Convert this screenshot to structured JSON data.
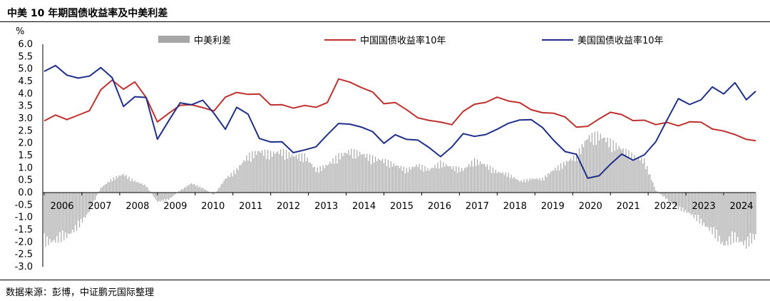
{
  "title": "中美 10 年期国债收益率及中美利差",
  "source": "数据来源：彭博，中证鹏元国际整理",
  "chart_data": {
    "type": "line",
    "unit": "%",
    "ylim": [
      -3.0,
      6.0
    ],
    "yticks": [
      "6.0",
      "5.5",
      "5.0",
      "4.5",
      "4.0",
      "3.5",
      "3.0",
      "2.5",
      "2.0",
      "1.5",
      "1.0",
      "0.5",
      "0.0",
      "-0.5",
      "-1.0",
      "-1.5",
      "-2.0",
      "-2.5",
      "-3.0"
    ],
    "years": [
      "2006",
      "2007",
      "2008",
      "2009",
      "2010",
      "2011",
      "2012",
      "2013",
      "2014",
      "2015",
      "2016",
      "2017",
      "2018",
      "2019",
      "2020",
      "2021",
      "2022",
      "2023",
      "2024"
    ],
    "x_range": [
      2006.0,
      2024.85
    ],
    "legend_placement": "top",
    "series": [
      {
        "name": "中美利差",
        "style": "bar",
        "color": "#a6a6a6",
        "x": [
          2006.0,
          2006.3,
          2006.6,
          2006.9,
          2007.2,
          2007.5,
          2007.8,
          2008.1,
          2008.4,
          2008.7,
          2009.0,
          2009.3,
          2009.6,
          2009.9,
          2010.2,
          2010.5,
          2010.8,
          2011.1,
          2011.4,
          2011.7,
          2012.0,
          2012.3,
          2012.6,
          2012.9,
          2013.2,
          2013.5,
          2013.8,
          2014.1,
          2014.4,
          2014.7,
          2015.0,
          2015.3,
          2015.6,
          2015.9,
          2016.2,
          2016.5,
          2016.8,
          2017.1,
          2017.4,
          2017.7,
          2018.0,
          2018.3,
          2018.6,
          2018.9,
          2019.2,
          2019.5,
          2019.8,
          2020.1,
          2020.4,
          2020.7,
          2021.0,
          2021.3,
          2021.6,
          2021.9,
          2022.2,
          2022.5,
          2022.8,
          2023.1,
          2023.4,
          2023.7,
          2024.0,
          2024.3,
          2024.6,
          2024.85
        ],
        "values": [
          -2.2,
          -2.1,
          -1.9,
          -1.5,
          -0.8,
          0.2,
          0.6,
          0.8,
          0.5,
          0.3,
          -0.4,
          -0.3,
          0.1,
          0.4,
          0.2,
          -0.1,
          0.6,
          1.0,
          1.6,
          1.8,
          1.7,
          1.8,
          1.6,
          1.6,
          1.0,
          1.2,
          1.6,
          1.8,
          1.7,
          1.5,
          1.4,
          1.2,
          1.0,
          1.2,
          1.0,
          1.3,
          1.1,
          1.0,
          1.4,
          1.2,
          0.9,
          0.8,
          0.5,
          0.6,
          0.6,
          1.0,
          1.3,
          1.6,
          2.4,
          2.5,
          2.2,
          1.9,
          1.6,
          1.4,
          0.1,
          -0.3,
          -0.7,
          -0.9,
          -1.3,
          -1.7,
          -2.3,
          -2.0,
          -2.3,
          -1.9
        ]
      },
      {
        "name": "中国国债收益率10年",
        "style": "line",
        "color": "#c0302f",
        "x": [
          2006.0,
          2006.3,
          2006.6,
          2006.9,
          2007.2,
          2007.5,
          2007.8,
          2008.1,
          2008.4,
          2008.7,
          2009.0,
          2009.3,
          2009.6,
          2009.9,
          2010.2,
          2010.5,
          2010.8,
          2011.1,
          2011.4,
          2011.7,
          2012.0,
          2012.3,
          2012.6,
          2012.9,
          2013.2,
          2013.5,
          2013.8,
          2014.1,
          2014.4,
          2014.7,
          2015.0,
          2015.3,
          2015.6,
          2015.9,
          2016.2,
          2016.5,
          2016.8,
          2017.1,
          2017.4,
          2017.7,
          2018.0,
          2018.3,
          2018.6,
          2018.9,
          2019.2,
          2019.5,
          2019.8,
          2020.1,
          2020.4,
          2020.7,
          2021.0,
          2021.3,
          2021.6,
          2021.9,
          2022.2,
          2022.5,
          2022.8,
          2023.1,
          2023.4,
          2023.7,
          2024.0,
          2024.3,
          2024.6,
          2024.85
        ],
        "values": [
          2.9,
          3.1,
          3.0,
          3.1,
          3.3,
          4.2,
          4.5,
          4.2,
          4.5,
          3.8,
          2.9,
          3.2,
          3.5,
          3.6,
          3.4,
          3.3,
          3.9,
          4.0,
          4.0,
          4.0,
          3.5,
          3.6,
          3.4,
          3.5,
          3.5,
          3.6,
          4.6,
          4.5,
          4.2,
          4.1,
          3.6,
          3.6,
          3.4,
          3.0,
          2.9,
          2.9,
          2.7,
          3.3,
          3.6,
          3.6,
          3.9,
          3.7,
          3.6,
          3.4,
          3.2,
          3.2,
          3.1,
          2.6,
          2.7,
          3.0,
          3.2,
          3.2,
          2.9,
          2.9,
          2.8,
          2.8,
          2.7,
          2.9,
          2.8,
          2.6,
          2.5,
          2.3,
          2.2,
          2.1
        ]
      },
      {
        "name": "美国国债收益率10年",
        "style": "line",
        "color": "#1f2f8a",
        "x": [
          2006.0,
          2006.3,
          2006.6,
          2006.9,
          2007.2,
          2007.5,
          2007.8,
          2008.1,
          2008.4,
          2008.7,
          2009.0,
          2009.3,
          2009.6,
          2009.9,
          2010.2,
          2010.5,
          2010.8,
          2011.1,
          2011.4,
          2011.7,
          2012.0,
          2012.3,
          2012.6,
          2012.9,
          2013.2,
          2013.5,
          2013.8,
          2014.1,
          2014.4,
          2014.7,
          2015.0,
          2015.3,
          2015.6,
          2015.9,
          2016.2,
          2016.5,
          2016.8,
          2017.1,
          2017.4,
          2017.7,
          2018.0,
          2018.3,
          2018.6,
          2018.9,
          2019.2,
          2019.5,
          2019.8,
          2020.1,
          2020.4,
          2020.7,
          2021.0,
          2021.3,
          2021.6,
          2021.9,
          2022.2,
          2022.5,
          2022.8,
          2023.1,
          2023.4,
          2023.7,
          2024.0,
          2024.3,
          2024.6,
          2024.85
        ],
        "values": [
          4.9,
          5.1,
          4.8,
          4.6,
          4.7,
          5.1,
          4.6,
          3.5,
          3.9,
          3.8,
          2.2,
          2.9,
          3.6,
          3.6,
          3.7,
          3.2,
          2.6,
          3.4,
          3.2,
          2.2,
          2.0,
          2.1,
          1.6,
          1.7,
          1.9,
          2.3,
          2.8,
          2.8,
          2.6,
          2.5,
          2.0,
          2.3,
          2.2,
          2.1,
          1.8,
          1.5,
          1.8,
          2.4,
          2.3,
          2.3,
          2.6,
          2.8,
          2.9,
          3.0,
          2.6,
          2.1,
          1.7,
          1.5,
          0.6,
          0.7,
          1.1,
          1.6,
          1.3,
          1.5,
          2.1,
          2.9,
          3.8,
          3.6,
          3.7,
          4.3,
          4.0,
          4.4,
          3.8,
          4.1
        ]
      }
    ]
  }
}
